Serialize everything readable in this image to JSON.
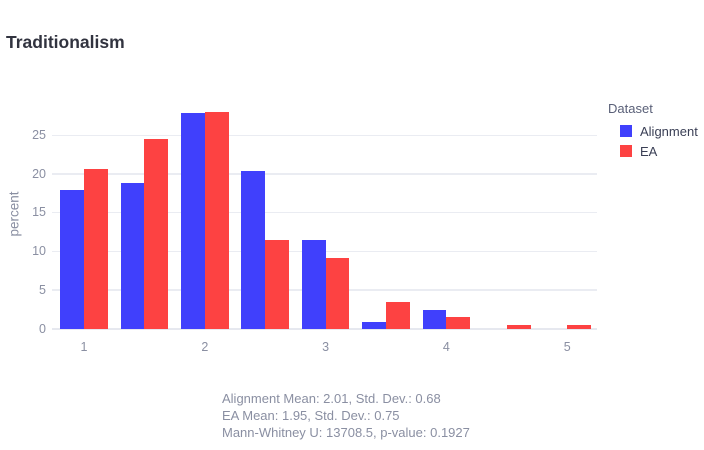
{
  "page": {
    "title": "Traditionalism"
  },
  "chart_data": {
    "type": "bar",
    "title": "Traditionalism",
    "xlabel": "",
    "ylabel": "percent",
    "grid": true,
    "legend_position": "right",
    "categories": [
      1,
      1.5,
      2,
      2.5,
      3,
      3.5,
      4,
      4.5,
      5
    ],
    "x_tick_labels": [
      "1",
      "2",
      "3",
      "4",
      "5"
    ],
    "x_tick_values": [
      1,
      2,
      3,
      4,
      5
    ],
    "y_tick_values": [
      0,
      5,
      10,
      15,
      20,
      25
    ],
    "ylim": [
      0,
      29.6
    ],
    "series": [
      {
        "name": "Alignment",
        "color": "#4040fc",
        "values": [
          18.0,
          18.8,
          27.9,
          20.4,
          11.5,
          0.9,
          2.5,
          0,
          0
        ]
      },
      {
        "name": "EA",
        "color": "#fd4242",
        "values": [
          20.7,
          24.6,
          28.1,
          11.5,
          9.2,
          3.5,
          1.6,
          0.5,
          0.5
        ]
      }
    ]
  },
  "legend": {
    "title": "Dataset",
    "items": [
      {
        "label": "Alignment"
      },
      {
        "label": "EA"
      }
    ]
  },
  "stats": {
    "lines": [
      "Alignment Mean: 2.01, Std. Dev.: 0.68",
      "EA Mean: 1.95, Std. Dev.: 0.75",
      "Mann-Whitney U: 13708.5, p-value: 0.1927"
    ]
  }
}
